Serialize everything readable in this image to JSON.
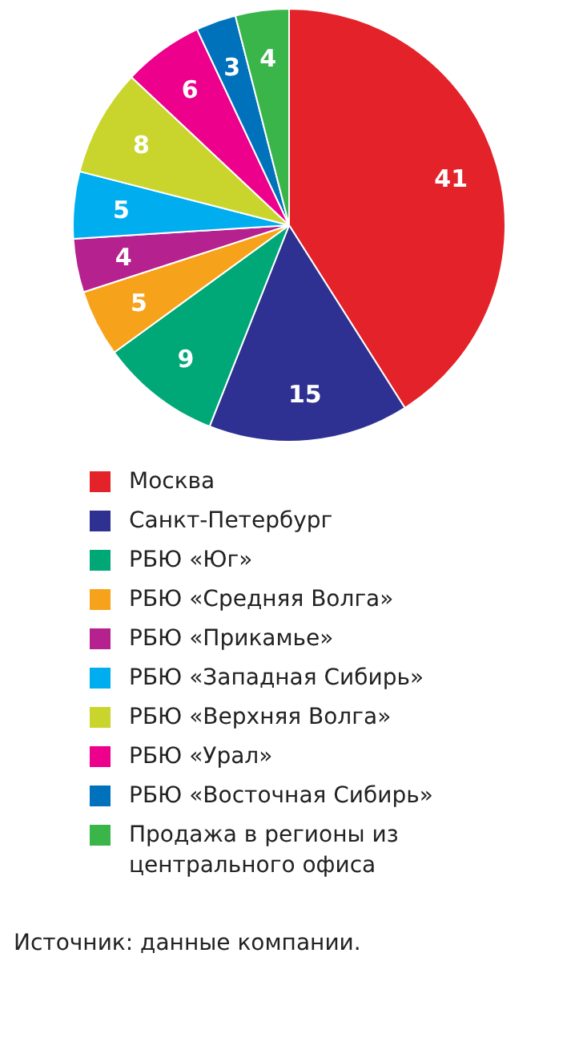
{
  "chart_data": {
    "type": "pie",
    "categories": [
      "Москва",
      "Санкт-Петербург",
      "РБЮ «Юг»",
      "РБЮ «Средняя Волга»",
      "РБЮ «Прикамье»",
      "РБЮ «Западная Сибирь»",
      "РБЮ «Верхняя Волга»",
      "РБЮ «Урал»",
      "РБЮ «Восточная Сибирь»",
      "Продажа в регионы из центрального офиса"
    ],
    "values": [
      41,
      15,
      9,
      5,
      4,
      5,
      8,
      6,
      3,
      4
    ],
    "colors": [
      "#e42229",
      "#2e3192",
      "#00a878",
      "#f7a21b",
      "#b5218e",
      "#00aeef",
      "#c9d52c",
      "#ec008c",
      "#0072bc",
      "#3ab54a"
    ],
    "data_labels": true,
    "legend": "bottom",
    "annotations": [
      "Источник: данные компании."
    ]
  }
}
